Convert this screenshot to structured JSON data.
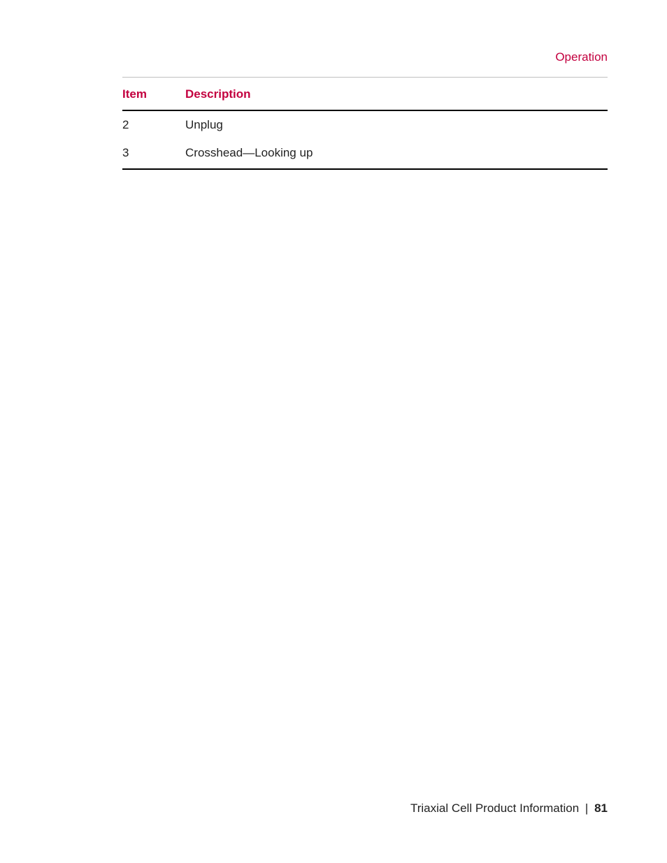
{
  "colors": {
    "accent": "#c3003f",
    "text": "#222222",
    "rule_light": "#bfbfbf",
    "rule_heavy": "#000000",
    "background": "#ffffff"
  },
  "header": {
    "section_label": "Operation"
  },
  "table": {
    "columns": [
      {
        "key": "item",
        "label": "Item"
      },
      {
        "key": "description",
        "label": "Description"
      }
    ],
    "rows": [
      {
        "item": "2",
        "description": "Unplug"
      },
      {
        "item": "3",
        "description": "Crosshead—Looking up"
      }
    ]
  },
  "footer": {
    "doc_title": "Triaxial Cell Product Information",
    "separator": "|",
    "page_number": "81"
  },
  "typography": {
    "body_fontsize_pt": 12,
    "header_fontsize_pt": 12,
    "font_family": "Arial"
  }
}
